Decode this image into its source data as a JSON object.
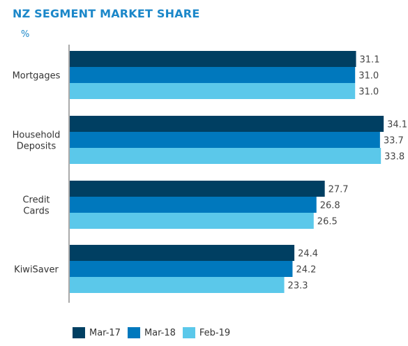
{
  "title": "NZ SEGMENT MARKET SHARE",
  "unit": "%",
  "colors": {
    "title": "#1b87c9",
    "axis": "#555555"
  },
  "chart_data": {
    "type": "bar",
    "orientation": "horizontal",
    "categories": [
      [
        "Mortgages"
      ],
      [
        "Household",
        "Deposits"
      ],
      [
        "Credit",
        "Cards"
      ],
      [
        "KiwiSaver"
      ]
    ],
    "series": [
      {
        "name": "Mar-17",
        "color": "#003f62",
        "values": [
          31.1,
          34.1,
          27.7,
          24.4
        ]
      },
      {
        "name": "Mar-18",
        "color": "#0078bd",
        "values": [
          31.0,
          33.7,
          26.8,
          24.2
        ]
      },
      {
        "name": "Feb-19",
        "color": "#5bc8ea",
        "values": [
          31.0,
          33.8,
          26.5,
          23.3
        ]
      }
    ],
    "xlim": [
      0,
      35
    ],
    "grid": false,
    "legend_position": "bottom-left"
  }
}
